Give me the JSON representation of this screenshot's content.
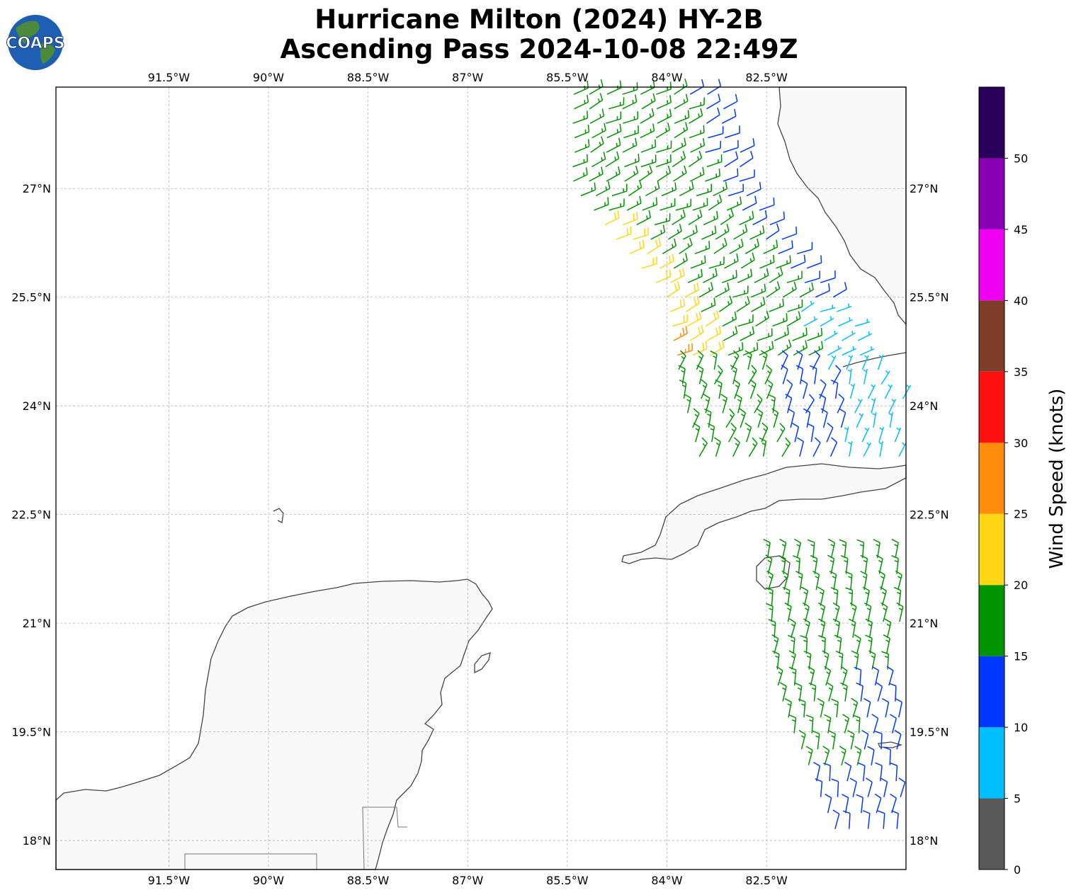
{
  "title": {
    "line1": "Hurricane Milton (2024) HY-2B",
    "line2": "Ascending Pass 2024-10-08 22:49Z"
  },
  "logo": {
    "text": "COAPS",
    "icon": "globe-icon"
  },
  "map": {
    "lon_range": [
      -93.2,
      -80.4
    ],
    "lat_range": [
      17.6,
      28.4
    ],
    "lon_ticks": [
      {
        "value": -91.5,
        "label": "91.5°W"
      },
      {
        "value": -90.0,
        "label": "90°W"
      },
      {
        "value": -88.5,
        "label": "88.5°W"
      },
      {
        "value": -87.0,
        "label": "87°W"
      },
      {
        "value": -85.5,
        "label": "85.5°W"
      },
      {
        "value": -84.0,
        "label": "84°W"
      },
      {
        "value": -82.5,
        "label": "82.5°W"
      }
    ],
    "lat_ticks": [
      {
        "value": 27.0,
        "label": "27°N"
      },
      {
        "value": 25.5,
        "label": "25.5°N"
      },
      {
        "value": 24.0,
        "label": "24°N"
      },
      {
        "value": 22.5,
        "label": "22.5°N"
      },
      {
        "value": 21.0,
        "label": "21°N"
      },
      {
        "value": 19.5,
        "label": "19.5°N"
      },
      {
        "value": 18.0,
        "label": "18°N"
      }
    ],
    "gridlines": true,
    "colors": {
      "coast": "#444444",
      "land": "#f8f8f8",
      "grid": "#b0b0b0"
    }
  },
  "colorbar": {
    "label": "Wind Speed (knots)",
    "ticks": [
      "0",
      "5",
      "10",
      "15",
      "20",
      "25",
      "30",
      "35",
      "40",
      "45",
      "50"
    ],
    "bins": [
      {
        "min": 0,
        "max": 5,
        "color": "#595959"
      },
      {
        "min": 5,
        "max": 10,
        "color": "#00bfff"
      },
      {
        "min": 10,
        "max": 15,
        "color": "#0038ff"
      },
      {
        "min": 15,
        "max": 20,
        "color": "#009400"
      },
      {
        "min": 20,
        "max": 25,
        "color": "#ffd714"
      },
      {
        "min": 25,
        "max": 30,
        "color": "#ff8c0a"
      },
      {
        "min": 30,
        "max": 35,
        "color": "#ff1010"
      },
      {
        "min": 35,
        "max": 40,
        "color": "#7f3c28"
      },
      {
        "min": 40,
        "max": 45,
        "color": "#f000f0"
      },
      {
        "min": 45,
        "max": 50,
        "color": "#8a00b4"
      },
      {
        "min": 50,
        "max": 55,
        "color": "#2a005a"
      }
    ]
  },
  "wind_field": {
    "description_type": "wind barbs",
    "north_swath": [
      {
        "lat": 28.3,
        "lon_start": -85.4,
        "lon_end": -83.2
      },
      {
        "lat": 27.0,
        "lon_start": -85.4,
        "lon_end": -82.7
      },
      {
        "lat": 25.5,
        "lon_start": -84.0,
        "lon_end": -81.4
      },
      {
        "lat": 24.0,
        "lon_start": -83.7,
        "lon_end": -80.4
      },
      {
        "lat": 23.2,
        "lon_start": -83.5,
        "lon_end": -80.5
      }
    ],
    "south_swath": [
      {
        "lat": 21.9,
        "lon_start": -82.5,
        "lon_end": -80.4
      },
      {
        "lat": 20.0,
        "lon_start": -82.3,
        "lon_end": -80.4
      },
      {
        "lat": 18.0,
        "lon_start": -81.4,
        "lon_end": -80.4
      }
    ],
    "speed_regions": [
      {
        "region": "north-west edge",
        "speed_kt": 22
      },
      {
        "region": "north center",
        "speed_kt": 17
      },
      {
        "region": "north-east edge",
        "speed_kt": 12
      },
      {
        "region": "eye-wall north",
        "speed_kt": 27
      },
      {
        "region": "near Florida Keys",
        "speed_kt": 8
      },
      {
        "region": "south swath main",
        "speed_kt": 17
      },
      {
        "region": "south swath east/south",
        "speed_kt": 12
      }
    ]
  }
}
